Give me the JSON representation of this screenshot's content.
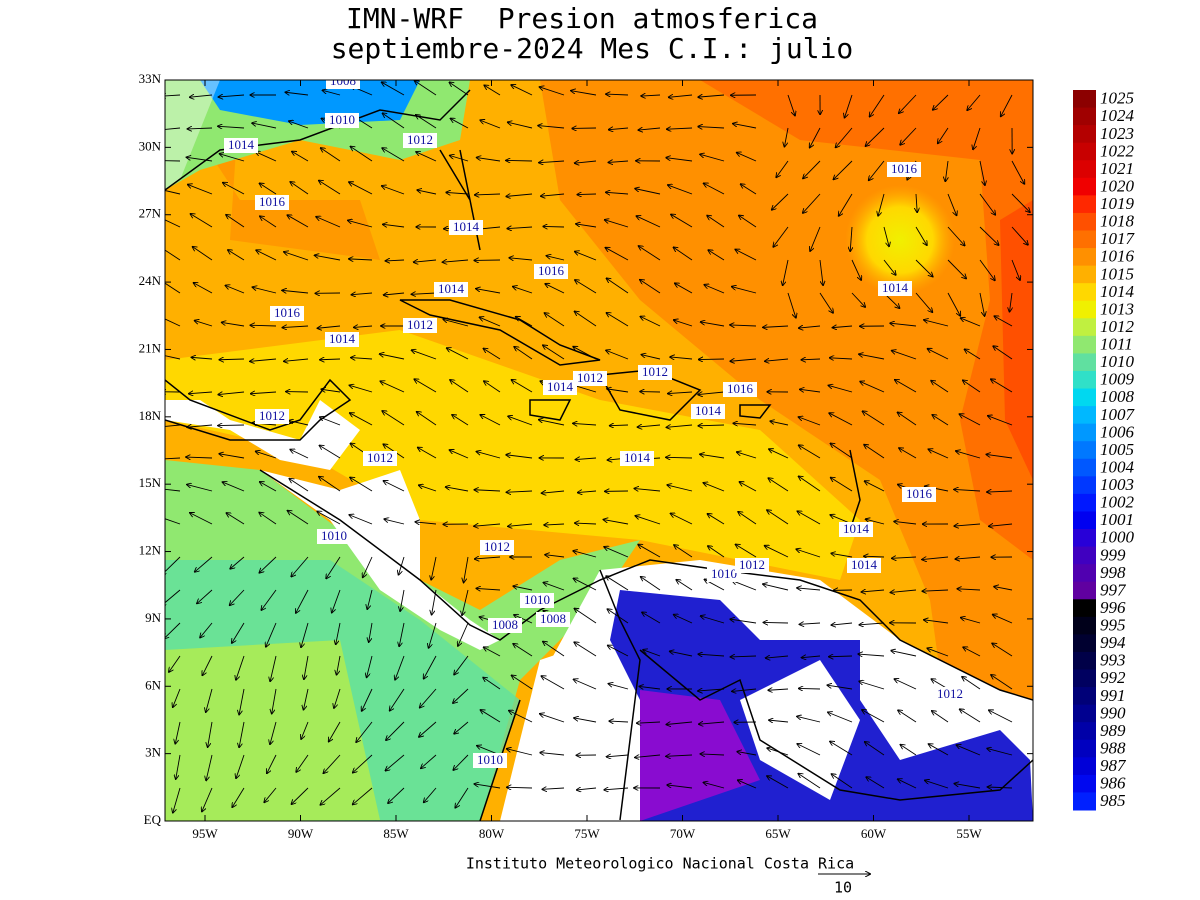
{
  "title": [
    "IMN-WRF  Presion atmosferica",
    "septiembre-2024 Mes C.I.: julio"
  ],
  "lat_labels": [
    "33N",
    "30N",
    "27N",
    "24N",
    "21N",
    "18N",
    "15N",
    "12N",
    "9N",
    "6N",
    "3N",
    "EQ"
  ],
  "lon_labels": [
    "95W",
    "90W",
    "85W",
    "80W",
    "75W",
    "70W",
    "65W",
    "60W",
    "55W"
  ],
  "colorbar": {
    "levels": [
      1025,
      1024,
      1023,
      1022,
      1021,
      1020,
      1019,
      1018,
      1017,
      1016,
      1015,
      1014,
      1013,
      1012,
      1011,
      1010,
      1009,
      1008,
      1007,
      1006,
      1005,
      1004,
      1003,
      1002,
      1001,
      1000,
      999,
      998,
      997,
      996,
      995,
      994,
      993,
      992,
      991,
      990,
      989,
      988,
      987,
      986,
      985
    ],
    "colors": [
      "#8c0000",
      "#a00000",
      "#b40000",
      "#c80000",
      "#dc0000",
      "#f00000",
      "#ff2800",
      "#ff5000",
      "#ff7000",
      "#ff9000",
      "#ffb000",
      "#ffd800",
      "#f0f000",
      "#c0f040",
      "#90e870",
      "#60e0a0",
      "#30e0c8",
      "#00d8f0",
      "#00b8ff",
      "#0098ff",
      "#0078ff",
      "#0058ff",
      "#0038ff",
      "#0018ff",
      "#0000f0",
      "#2800d8",
      "#4000c0",
      "#5000b0",
      "#6000a0",
      "#000000",
      "#00001a",
      "#000030",
      "#000048",
      "#000060",
      "#000078",
      "#000090",
      "#0000a8",
      "#0000c0",
      "#0000d8",
      "#0008f0",
      "#0020ff"
    ]
  },
  "contour_labels": [
    "1008",
    "1010",
    "1014",
    "1012",
    "1016",
    "1014",
    "1016",
    "1014",
    "1016",
    "1012",
    "1014",
    "1016",
    "1014",
    "1014",
    "1012",
    "1012",
    "1016",
    "1014",
    "1012",
    "1012",
    "1014",
    "1016",
    "1014",
    "1010",
    "1012",
    "1010",
    "1012",
    "1014",
    "1010",
    "1008",
    "1008",
    "1012",
    "1010"
  ],
  "footer": "Instituto Meteorologico Nacional Costa Rica",
  "vector_scale": "10"
}
